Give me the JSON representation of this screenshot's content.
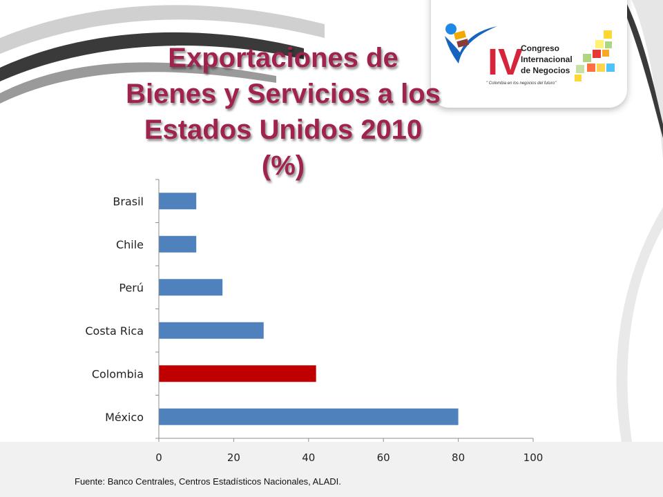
{
  "slide": {
    "title": "Exportaciones de Bienes y Servicios a los Estados Unidos 2010 (%)",
    "source": "Fuente: Banco Centrales, Centros Estadísticos Nacionales, ALADI."
  },
  "logo": {
    "numeral": "IV",
    "line1": "Congreso",
    "line2": "Internacional",
    "line3": "de Negocios",
    "tagline": "\" Colombia en los negocios del futuro\""
  },
  "colors": {
    "title": "#a0224e",
    "bar": "#4f81bd",
    "highlight_bar": "#c00000",
    "logo_red": "#d6243a",
    "logo_blue": "#1565c0"
  },
  "chart_data": {
    "type": "bar",
    "orientation": "horizontal",
    "categories": [
      "Brasil",
      "Chile",
      "Perú",
      "Costa Rica",
      "Colombia",
      "México"
    ],
    "values": [
      10,
      10,
      17,
      28,
      42,
      80
    ],
    "highlight": "Colombia",
    "xlim": [
      0,
      100
    ],
    "xticks": [
      "0",
      "20",
      "40",
      "60",
      "80",
      "100"
    ],
    "grid": false,
    "legend": "none"
  }
}
